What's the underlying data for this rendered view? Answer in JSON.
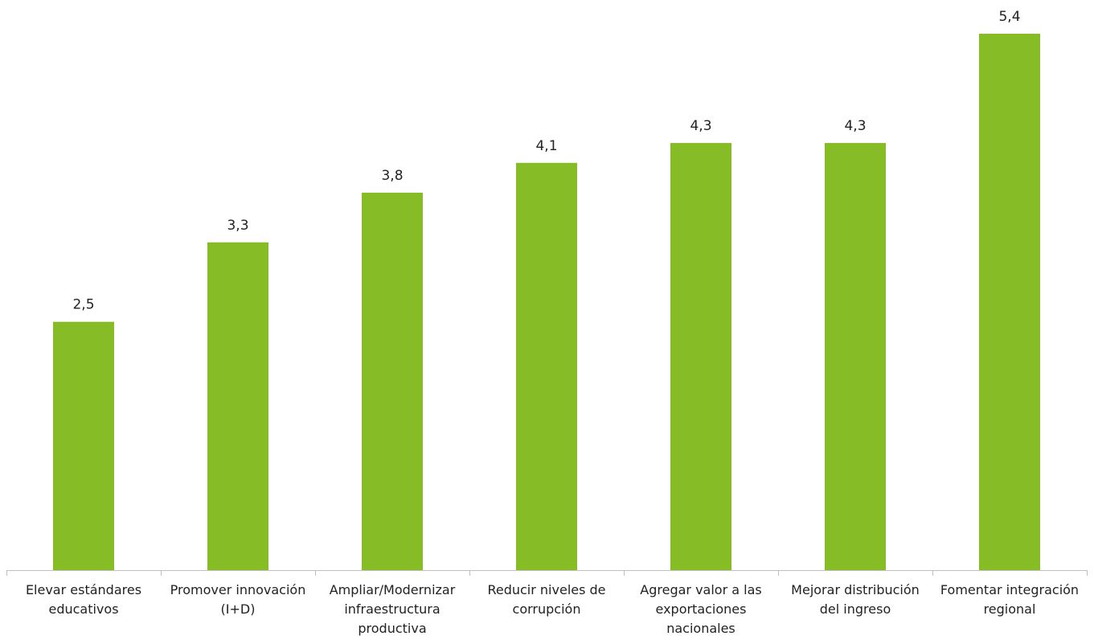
{
  "chart_data": {
    "type": "bar",
    "categories": [
      [
        "Elevar estándares",
        "educativos"
      ],
      [
        "Promover innovación",
        "(I+D)"
      ],
      [
        "Ampliar/Modernizar",
        "infraestructura",
        "productiva"
      ],
      [
        "Reducir niveles de",
        "corrupción"
      ],
      [
        "Agregar valor a las",
        "exportaciones",
        "nacionales"
      ],
      [
        "Mejorar distribución",
        "del ingreso"
      ],
      [
        "Fomentar integración",
        "regional"
      ]
    ],
    "values": [
      2.5,
      3.3,
      3.8,
      4.1,
      4.3,
      4.3,
      5.4
    ],
    "value_labels": [
      "2,5",
      "3,3",
      "3,8",
      "4,1",
      "4,3",
      "4,3",
      "5,4"
    ],
    "ylim": [
      0,
      5.6
    ],
    "grid": false,
    "colors": {
      "bar": "#86bc25",
      "axis": "#bfbfbf",
      "text": "#222222"
    }
  }
}
